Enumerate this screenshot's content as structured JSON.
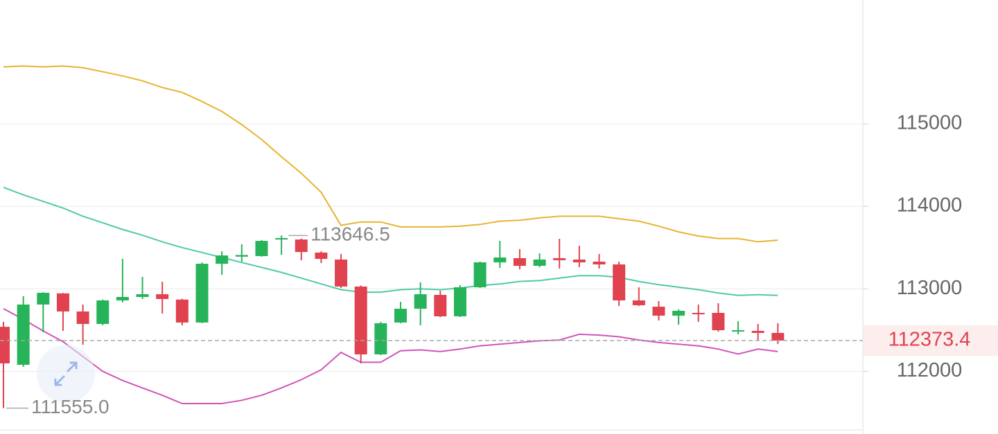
{
  "chart_data": {
    "type": "candlestick",
    "up_color": "#27b35a",
    "down_color": "#e0424f",
    "open": [
      112540,
      112080,
      112810,
      112945,
      112726,
      112575,
      112860,
      112902,
      112935,
      112870,
      112592,
      113304,
      113390,
      113397,
      113598,
      113598,
      113440,
      113355,
      113028,
      112206,
      112592,
      112759,
      112927,
      112667,
      113019,
      113321,
      113372,
      113279,
      113372,
      113355,
      113330,
      113296,
      112860,
      112784,
      112675,
      112709,
      112709,
      112482,
      112491,
      112466
    ],
    "high": [
      112600,
      112910,
      112960,
      112950,
      112810,
      112870,
      113363,
      113145,
      113086,
      112880,
      113320,
      113455,
      113539,
      113590,
      113646.5,
      113610,
      113455,
      113422,
      113040,
      112600,
      112843,
      113078,
      112977,
      113044,
      113330,
      113581,
      113481,
      113430,
      113606,
      113522,
      113422,
      113330,
      113019,
      112852,
      112751,
      112810,
      112826,
      112608,
      112575,
      112583
    ],
    "low": [
      111555,
      112055,
      112474,
      112491,
      112323,
      112560,
      112835,
      112877,
      112700,
      112558,
      112584,
      113170,
      113330,
      113390,
      113413,
      113346,
      113313,
      113011,
      112097,
      112197,
      112584,
      112558,
      112658,
      112658,
      113010,
      113254,
      113237,
      113262,
      113246,
      113262,
      113246,
      112793,
      112793,
      112617,
      112566,
      112600,
      112482,
      112449,
      112373,
      112332
    ],
    "close": [
      112097,
      112810,
      112952,
      112726,
      112575,
      112860,
      112902,
      112935,
      112877,
      112592,
      113304,
      113405,
      113410,
      113581,
      113615,
      113447,
      113363,
      113028,
      112206,
      112583,
      112759,
      112935,
      112667,
      113019,
      113321,
      113380,
      113279,
      113355,
      113347,
      113321,
      113296,
      112860,
      112801,
      112675,
      112734,
      112692,
      112499,
      112499,
      112466,
      112373.4
    ],
    "overlays": [
      {
        "color": "#e8b430",
        "values": [
          115690,
          115700,
          115690,
          115700,
          115680,
          115630,
          115580,
          115520,
          115440,
          115380,
          115270,
          115150,
          114990,
          114810,
          114600,
          114400,
          114170,
          113770,
          113810,
          113810,
          113750,
          113750,
          113750,
          113760,
          113780,
          113820,
          113830,
          113860,
          113880,
          113880,
          113880,
          113850,
          113820,
          113760,
          113690,
          113640,
          113610,
          113610,
          113570,
          113590
        ]
      },
      {
        "color": "#4fc9a8",
        "values": [
          114230,
          114140,
          114060,
          113980,
          113880,
          113800,
          113720,
          113650,
          113570,
          113500,
          113440,
          113380,
          113320,
          113260,
          113200,
          113130,
          113060,
          112990,
          112960,
          112960,
          112990,
          113000,
          112990,
          113010,
          113040,
          113060,
          113090,
          113100,
          113130,
          113160,
          113160,
          113140,
          113090,
          113050,
          113020,
          112990,
          112950,
          112920,
          112930,
          112920
        ]
      },
      {
        "color": "#d054b8",
        "values": [
          112760,
          112630,
          112490,
          112360,
          112180,
          112000,
          111890,
          111800,
          111710,
          111610,
          111610,
          111610,
          111650,
          111710,
          111800,
          111900,
          112020,
          112230,
          112110,
          112110,
          112250,
          112260,
          112240,
          112270,
          112310,
          112330,
          112350,
          112370,
          112380,
          112450,
          112440,
          112420,
          112380,
          112350,
          112330,
          112310,
          112270,
          112210,
          112270,
          112240
        ]
      }
    ],
    "ylim": [
      111300,
      116500
    ],
    "yticks": [
      112000,
      113000,
      114000,
      115000
    ],
    "grid": true,
    "max_label": 113646.5,
    "min_label": {
      "value": 111555,
      "label": "111555.0"
    },
    "last_price": 112373.4
  }
}
